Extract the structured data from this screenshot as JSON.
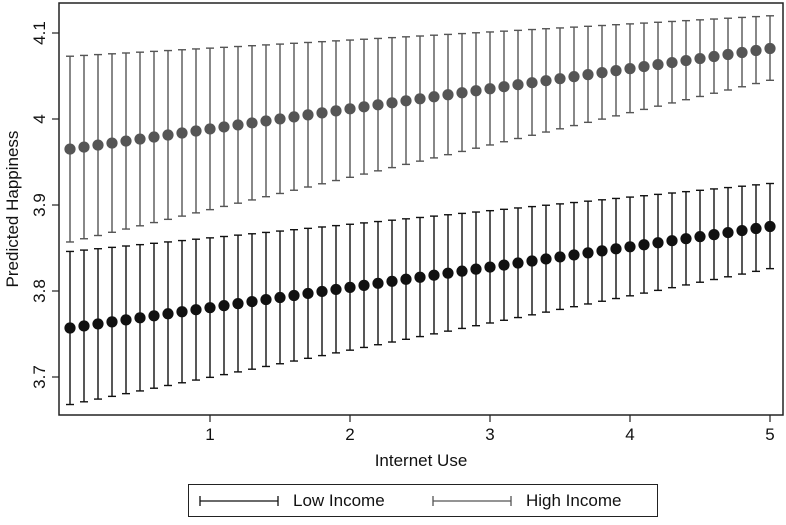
{
  "chart_data": {
    "type": "scatter",
    "subtype": "point-with-error-bars",
    "title": "",
    "xlabel": "Internet Use",
    "ylabel": "Predicted Happiness",
    "xlim": [
      -0.08,
      5.09
    ],
    "ylim": [
      3.653,
      4.135
    ],
    "x_ticks": [
      1,
      2,
      3,
      4,
      5
    ],
    "y_ticks": [
      3.7,
      3.8,
      3.9,
      4.0,
      4.1
    ],
    "x_tick_labels": [
      "1",
      "2",
      "3",
      "4",
      "5"
    ],
    "y_tick_labels": [
      "3.7",
      "3.8",
      "3.9",
      "4",
      "4.1"
    ],
    "grid": false,
    "legend_position": "bottom",
    "x_start": 0,
    "x_end": 5,
    "n_points": 51,
    "series": [
      {
        "name": "Low Income",
        "color": "#111111",
        "mean_start": 3.757,
        "mean_end": 3.875,
        "ci_upper_start": 3.846,
        "ci_upper_end": 3.925,
        "ci_lower_start": 3.668,
        "ci_lower_end": 3.826
      },
      {
        "name": "High Income",
        "color": "#555555",
        "mean_start": 3.965,
        "mean_end": 4.082,
        "ci_upper_start": 4.073,
        "ci_upper_end": 4.12,
        "ci_lower_start": 3.857,
        "ci_lower_end": 4.045
      }
    ]
  },
  "legend": {
    "items": [
      {
        "label": "Low Income",
        "color": "#111111"
      },
      {
        "label": "High Income",
        "color": "#555555"
      }
    ]
  }
}
